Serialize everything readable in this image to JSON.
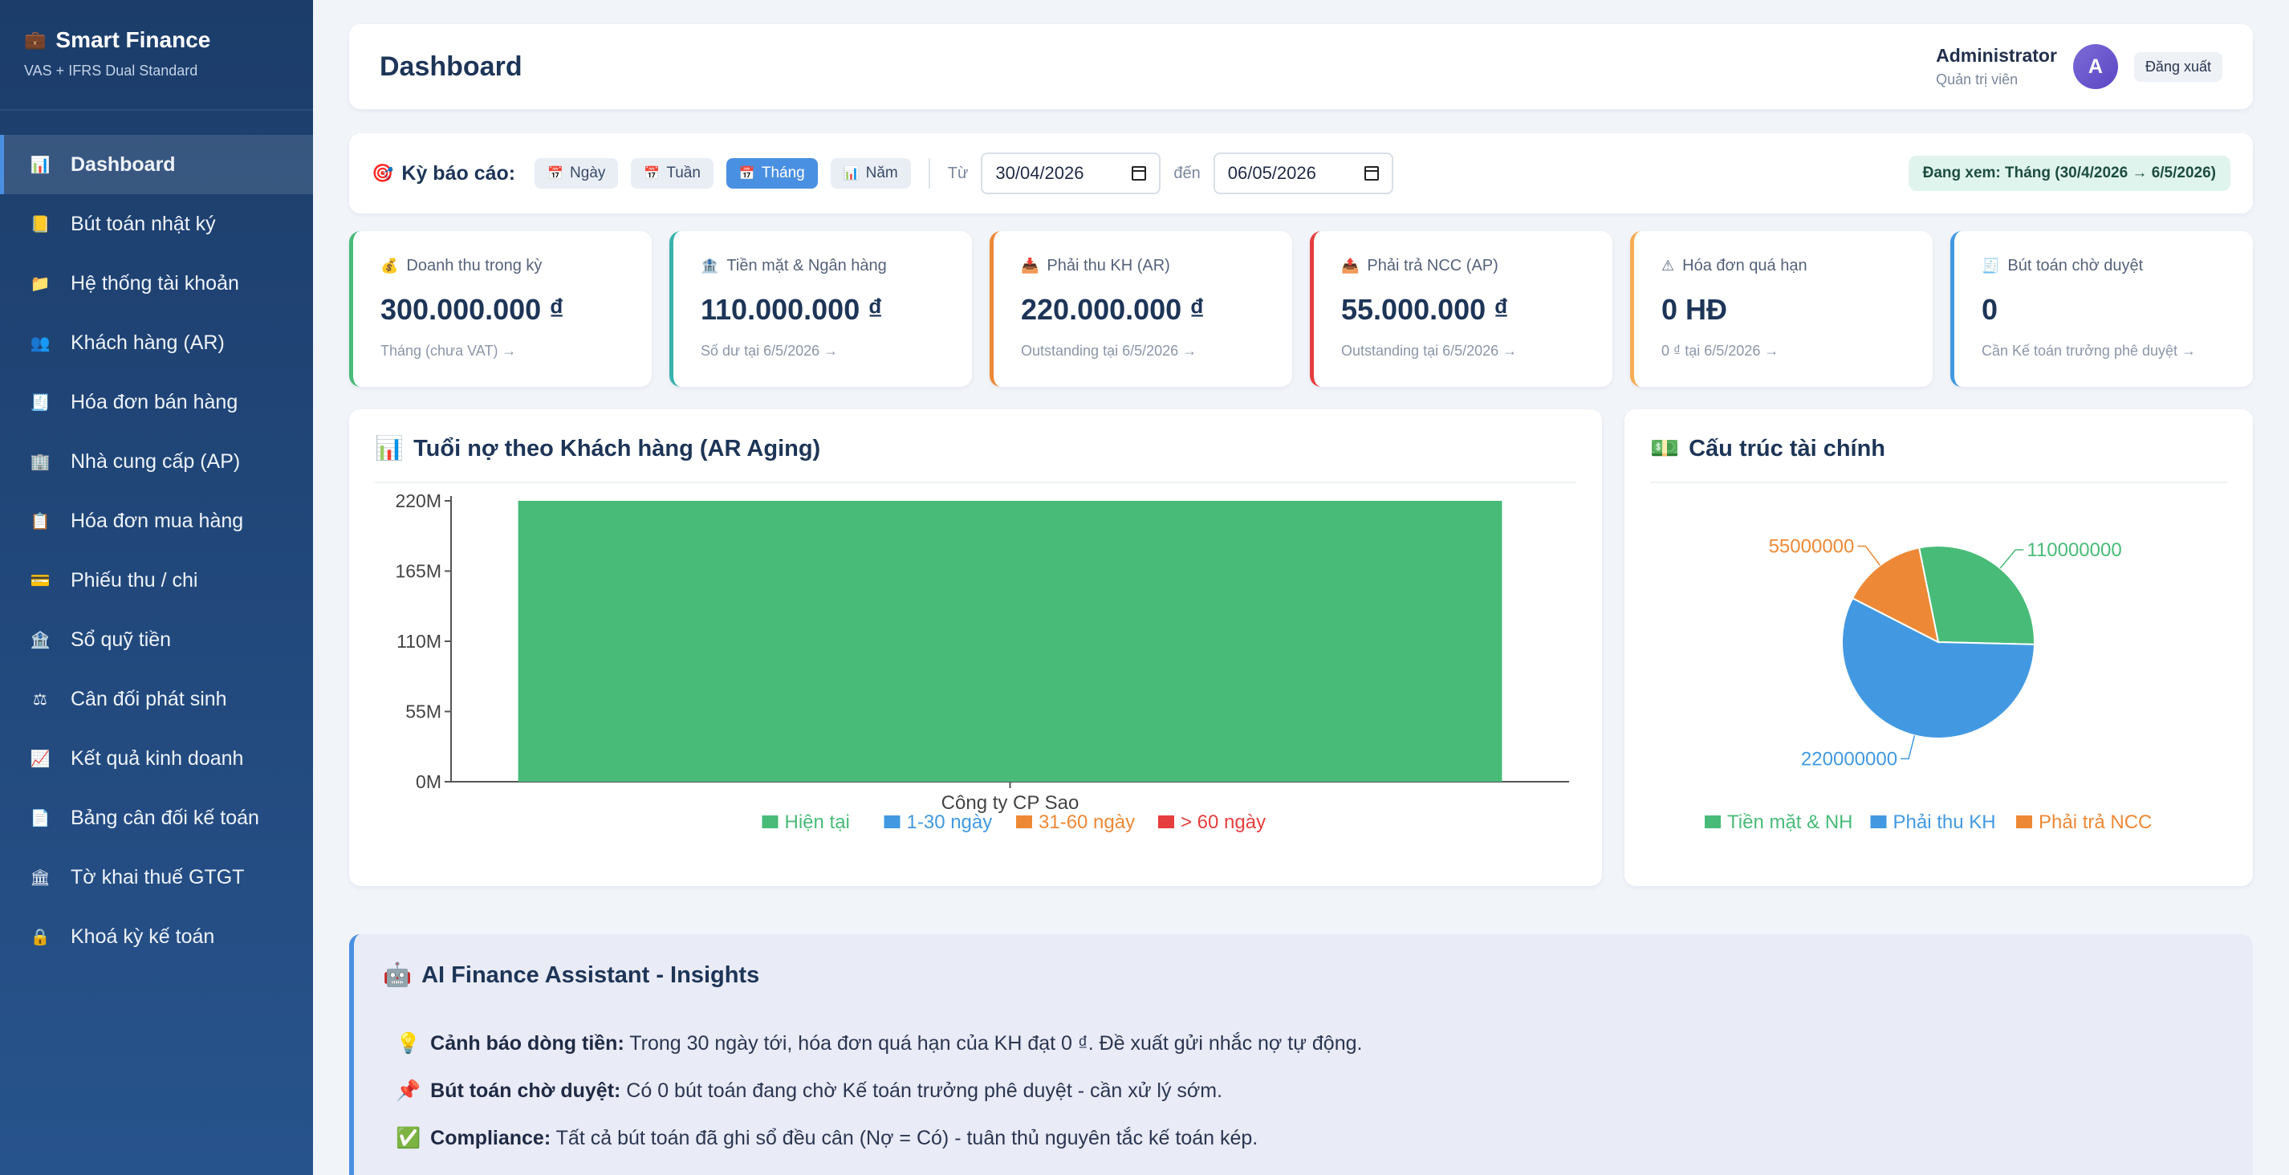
{
  "brand": {
    "title": "Smart Finance",
    "subtitle": "VAS + IFRS Dual Standard",
    "icon": "briefcase-icon"
  },
  "sidebar": {
    "items": [
      {
        "label": "Dashboard",
        "icon": "chart-icon",
        "glyph": "📊",
        "active": true
      },
      {
        "label": "Bút toán nhật ký",
        "icon": "ledger-icon",
        "glyph": "📒"
      },
      {
        "label": "Hệ thống tài khoản",
        "icon": "folder-icon",
        "glyph": "📁"
      },
      {
        "label": "Khách hàng (AR)",
        "icon": "users-icon",
        "glyph": "👥"
      },
      {
        "label": "Hóa đơn bán hàng",
        "icon": "invoice-icon",
        "glyph": "🧾"
      },
      {
        "label": "Nhà cung cấp (AP)",
        "icon": "building-icon",
        "glyph": "🏢"
      },
      {
        "label": "Hóa đơn mua hàng",
        "icon": "receipt-icon",
        "glyph": "📋"
      },
      {
        "label": "Phiếu thu / chi",
        "icon": "card-icon",
        "glyph": "💳"
      },
      {
        "label": "Sổ quỹ tiền",
        "icon": "bank-icon",
        "glyph": "🏦"
      },
      {
        "label": "Cân đối phát sinh",
        "icon": "scale-icon",
        "glyph": "⚖"
      },
      {
        "label": "Kết quả kinh doanh",
        "icon": "trend-icon",
        "glyph": "📈"
      },
      {
        "label": "Bảng cân đối kế toán",
        "icon": "document-icon",
        "glyph": "📄"
      },
      {
        "label": "Tờ khai thuế GTGT",
        "icon": "government-icon",
        "glyph": "🏛"
      },
      {
        "label": "Khoá kỳ kế toán",
        "icon": "lock-icon",
        "glyph": "🔒"
      }
    ]
  },
  "header": {
    "title": "Dashboard",
    "user_name": "Administrator",
    "user_role": "Quản trị viên",
    "avatar_letter": "A",
    "logout_label": "Đăng xuất"
  },
  "filter": {
    "label": "Kỳ báo cáo:",
    "chips": [
      {
        "label": "Ngày",
        "active": false
      },
      {
        "label": "Tuần",
        "active": false
      },
      {
        "label": "Tháng",
        "active": true
      },
      {
        "label": "Năm",
        "active": false
      }
    ],
    "from_label": "Từ",
    "from_value": "30/04/2026",
    "to_label": "đến",
    "to_value": "06/05/2026",
    "viewing": "Đang xem: Tháng (30/4/2026 → 6/5/2026)"
  },
  "kpis": [
    {
      "label": "Doanh thu trong kỳ",
      "glyph": "💰",
      "value": "300.000.000 ₫",
      "sub": "Tháng (chưa VAT) →",
      "color": "#48bb78"
    },
    {
      "label": "Tiền mặt & Ngân hàng",
      "glyph": "🏦",
      "value": "110.000.000 ₫",
      "sub": "Số dư tại 6/5/2026 →",
      "color": "#38b2ac"
    },
    {
      "label": "Phải thu KH (AR)",
      "glyph": "📥",
      "value": "220.000.000 ₫",
      "sub": "Outstanding tại 6/5/2026 →",
      "color": "#ed8936"
    },
    {
      "label": "Phải trả NCC (AP)",
      "glyph": "📤",
      "value": "55.000.000 ₫",
      "sub": "Outstanding tại 6/5/2026 →",
      "color": "#e53e3e"
    },
    {
      "label": "Hóa đơn quá hạn",
      "glyph": "⚠",
      "value": "0 HĐ",
      "sub": "0 ₫ tại 6/5/2026 →",
      "color": "#f6ad55"
    },
    {
      "label": "Bút toán chờ duyệt",
      "glyph": "🧾",
      "value": "0",
      "sub": "Cần Kế toán trưởng phê duyệt →",
      "color": "#4299e1"
    }
  ],
  "ar_chart": {
    "title": "Tuổi nợ theo Khách hàng (AR Aging)",
    "glyph": "📊"
  },
  "pie_chart": {
    "title": "Cấu trúc tài chính",
    "glyph": "💵"
  },
  "chart_data": [
    {
      "type": "bar",
      "title": "Tuổi nợ theo Khách hàng (AR Aging)",
      "categories": [
        "Công ty CP Sao"
      ],
      "series": [
        {
          "name": "Hiện tại",
          "values": [
            220000000
          ],
          "color": "#48bb78"
        },
        {
          "name": "1-30 ngày",
          "values": [
            0
          ],
          "color": "#4299e1"
        },
        {
          "name": "31-60 ngày",
          "values": [
            0
          ],
          "color": "#ed8936"
        },
        {
          "name": "> 60 ngày",
          "values": [
            0
          ],
          "color": "#e53e3e"
        }
      ],
      "y_ticks": [
        "0M",
        "55M",
        "110M",
        "165M",
        "220M"
      ],
      "ylim": [
        0,
        220000000
      ],
      "legend": "bottom"
    },
    {
      "type": "pie",
      "title": "Cấu trúc tài chính",
      "slices": [
        {
          "name": "Tiền mặt & NH",
          "value": 110000000,
          "label": "110000000",
          "color": "#48bb78"
        },
        {
          "name": "Phải thu KH",
          "value": 220000000,
          "label": "220000000",
          "color": "#4299e1"
        },
        {
          "name": "Phải trả NCC",
          "value": 55000000,
          "label": "55000000",
          "color": "#ed8936"
        }
      ],
      "legend": "bottom"
    }
  ],
  "ai": {
    "title": "AI Finance Assistant - Insights",
    "glyph": "🤖",
    "rows": [
      {
        "glyph": "💡",
        "bold": "Cảnh báo dòng tiền:",
        "text": " Trong 30 ngày tới, hóa đơn quá hạn của KH đạt 0 ₫. Đề xuất gửi nhắc nợ tự động."
      },
      {
        "glyph": "📌",
        "bold": "Bút toán chờ duyệt:",
        "text": " Có 0 bút toán đang chờ Kế toán trưởng phê duyệt - cần xử lý sớm."
      },
      {
        "glyph": "✅",
        "bold": "Compliance:",
        "text": " Tất cả bút toán đã ghi sổ đều cân (Nợ = Có) - tuân thủ nguyên tắc kế toán kép."
      }
    ]
  }
}
